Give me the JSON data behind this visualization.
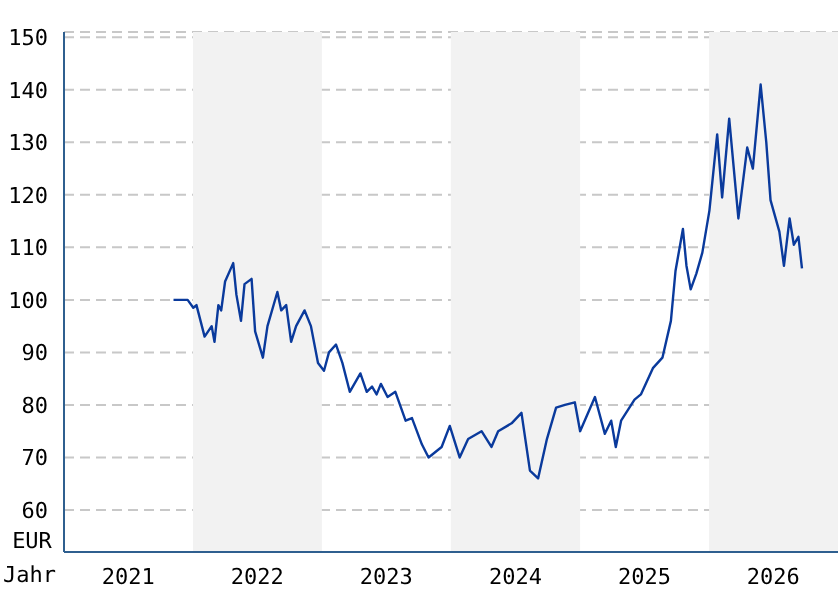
{
  "chart_data": {
    "type": "line",
    "xlabel": "Jahr",
    "ylabel": "EUR",
    "x": [
      "2021-11-07",
      "2021-12-17",
      "2022-01-02",
      "2022-01-11",
      "2022-02-03",
      "2022-02-23",
      "2022-03-03",
      "2022-03-14",
      "2022-03-22",
      "2022-04-02",
      "2022-04-25",
      "2022-05-04",
      "2022-05-17",
      "2022-05-27",
      "2022-06-16",
      "2022-06-26",
      "2022-07-18",
      "2022-07-31",
      "2022-08-28",
      "2022-09-08",
      "2022-09-22",
      "2022-10-06",
      "2022-10-20",
      "2022-11-13",
      "2022-12-01",
      "2022-12-21",
      "2023-01-07",
      "2023-01-21",
      "2023-02-10",
      "2023-02-28",
      "2023-03-21",
      "2023-04-20",
      "2023-05-08",
      "2023-05-23",
      "2023-06-05",
      "2023-06-17",
      "2023-07-06",
      "2023-07-28",
      "2023-08-26",
      "2023-09-13",
      "2023-10-11",
      "2023-10-30",
      "2023-12-06",
      "2023-12-29",
      "2024-01-26",
      "2024-02-19",
      "2024-03-28",
      "2024-04-25",
      "2024-05-14",
      "2024-06-21",
      "2024-07-19",
      "2024-08-12",
      "2024-09-04",
      "2024-09-29",
      "2024-10-25",
      "2024-11-19",
      "2024-12-17",
      "2025-01-01",
      "2025-02-12",
      "2025-03-12",
      "2025-03-30",
      "2025-04-12",
      "2025-04-27",
      "2025-06-04",
      "2025-06-22",
      "2025-07-26",
      "2025-08-22",
      "2025-09-15",
      "2025-09-28",
      "2025-10-19",
      "2025-10-29",
      "2025-11-10",
      "2025-11-26",
      "2025-12-13",
      "2026-01-02",
      "2026-01-24",
      "2026-02-07",
      "2026-02-27",
      "2026-03-25",
      "2026-04-19",
      "2026-05-05",
      "2026-05-27",
      "2026-06-12",
      "2026-06-24",
      "2026-07-19",
      "2026-08-01",
      "2026-08-17",
      "2026-08-29",
      "2026-09-11",
      "2026-09-21"
    ],
    "series": [
      {
        "color": "#0a3a9c",
        "values": [
          100,
          100,
          98.5,
          99,
          93,
          95,
          92,
          99,
          98,
          103.5,
          107,
          101,
          96,
          103,
          104,
          94,
          89,
          95,
          101.5,
          98,
          99,
          92,
          95,
          98,
          95,
          88,
          86.5,
          90,
          91.5,
          88,
          82.5,
          86,
          82.5,
          83.5,
          82,
          84,
          81.5,
          82.5,
          77,
          77.5,
          72.5,
          70,
          72,
          76,
          70,
          73.5,
          75,
          72,
          75,
          76.5,
          78.5,
          67.5,
          66,
          73.5,
          79.5,
          80,
          80.5,
          75,
          81.5,
          74.5,
          77,
          72,
          77,
          81,
          82,
          87,
          89,
          96,
          105.5,
          113.5,
          106.5,
          102,
          105,
          109,
          117,
          131.5,
          119.5,
          134.5,
          115.5,
          129,
          125,
          141,
          130,
          119,
          113,
          106.5,
          115.5,
          110.5,
          112,
          106
        ]
      }
    ],
    "xlim": [
      "2021-01-01",
      "2027-01-01"
    ],
    "xticks": [
      {
        "value": "2021-07-02",
        "label": "2021"
      },
      {
        "value": "2022-07-02",
        "label": "2022"
      },
      {
        "value": "2023-07-02",
        "label": "2023"
      },
      {
        "value": "2024-07-02",
        "label": "2024"
      },
      {
        "value": "2025-07-02",
        "label": "2025"
      },
      {
        "value": "2026-07-02",
        "label": "2026"
      }
    ],
    "ylim": [
      52,
      151
    ],
    "yticks": [
      60,
      70,
      80,
      90,
      100,
      110,
      120,
      130,
      140,
      150
    ],
    "bands": [
      {
        "axis": "x",
        "from": "2022-01-01",
        "to": "2023-01-01",
        "color": "#f2f2f2"
      },
      {
        "axis": "x",
        "from": "2024-01-01",
        "to": "2025-01-01",
        "color": "#f2f2f2"
      },
      {
        "axis": "x",
        "from": "2026-01-01",
        "to": "2027-01-01",
        "color": "#f2f2f2"
      }
    ],
    "grid": "y",
    "legend": false,
    "marker": "none",
    "line_style": "solid"
  }
}
